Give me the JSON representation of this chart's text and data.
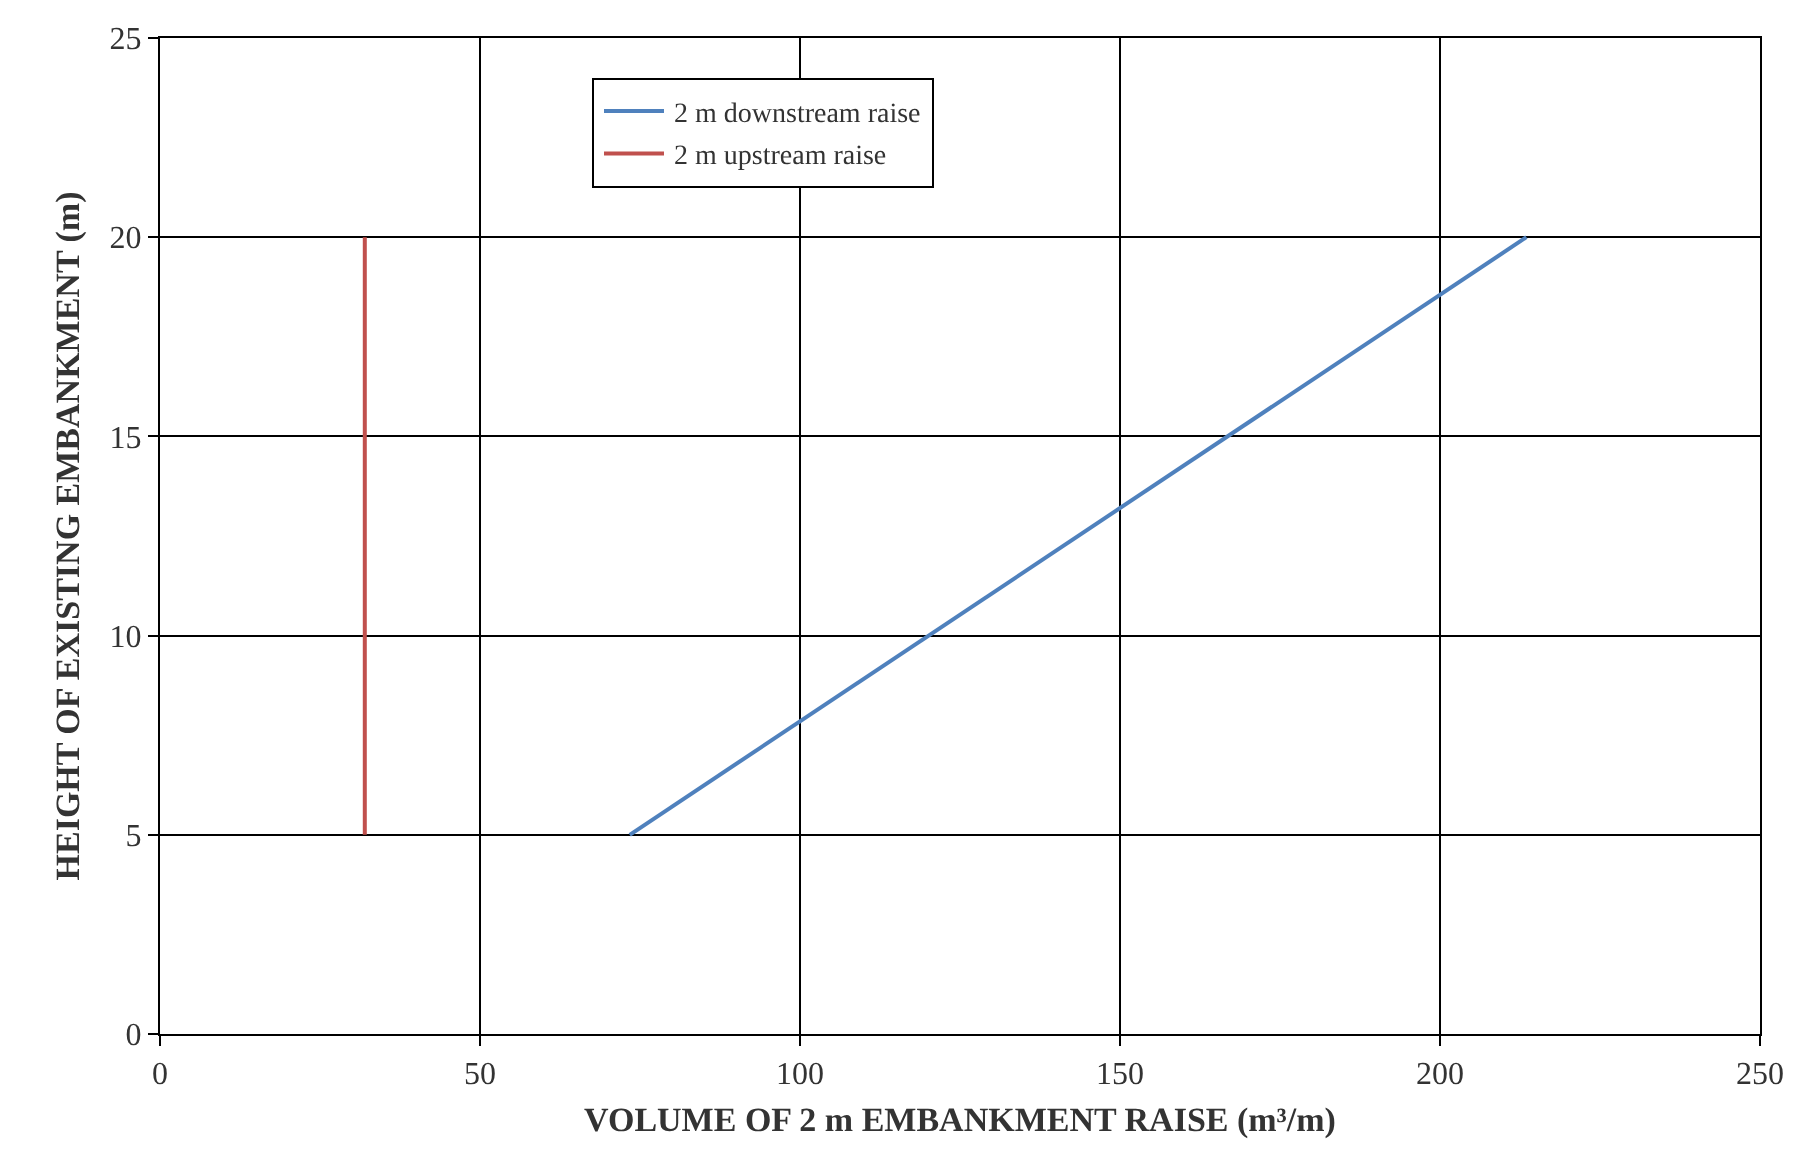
{
  "chart_data": {
    "type": "line",
    "xlabel": "VOLUME OF 2 m EMBANKMENT RAISE (m³/m)",
    "ylabel": "HEIGHT OF EXISTING EMBANKMENT (m)",
    "series": [
      {
        "name": "2 m downstream raise",
        "color": "#4f81bd",
        "x": [
          73.4,
          213.5
        ],
        "values": [
          5,
          20
        ]
      },
      {
        "name": "2 m upstream raise",
        "color": "#c0504d",
        "x": [
          32,
          32
        ],
        "values": [
          5,
          20
        ]
      }
    ],
    "xlim": [
      0,
      250
    ],
    "xticks": [
      0,
      50,
      100,
      150,
      200,
      250
    ],
    "ylim": [
      0,
      25
    ],
    "yticks": [
      0,
      5,
      10,
      15,
      20,
      25
    ],
    "grid": true,
    "legend": "top",
    "marker": "none",
    "line_style": "solid"
  }
}
